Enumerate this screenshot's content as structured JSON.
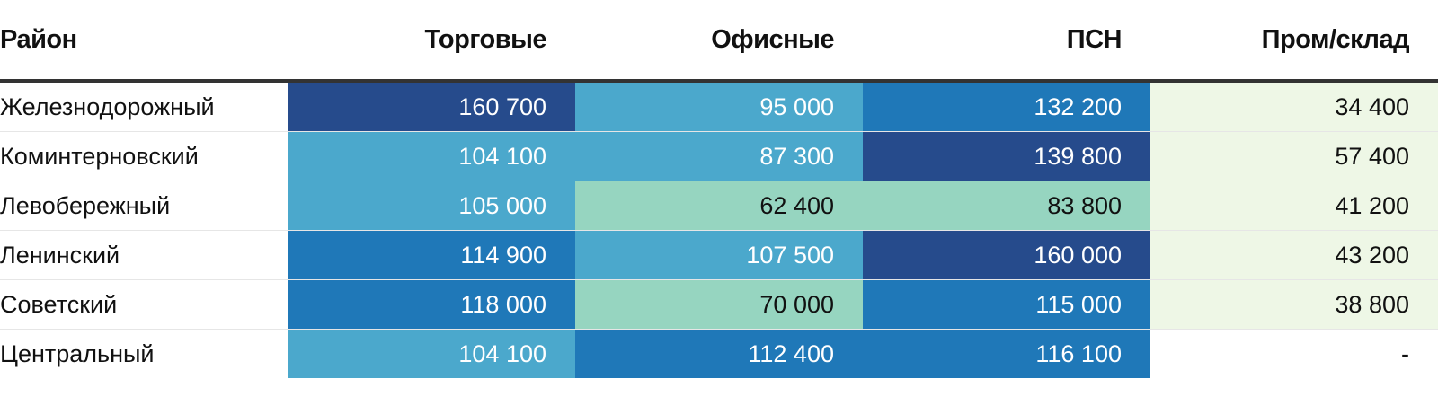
{
  "chart_data": {
    "type": "table",
    "columns": [
      "Район",
      "Торговые",
      "Офисные",
      "ПСН",
      "Пром/склад"
    ],
    "rows": [
      {
        "district": "Железнодорожный",
        "cells": [
          "160 700",
          "95 000",
          "132 200",
          "34 400"
        ],
        "values": [
          160700,
          95000,
          132200,
          34400
        ]
      },
      {
        "district": "Коминтерновский",
        "cells": [
          "104 100",
          "87 300",
          "139 800",
          "57 400"
        ],
        "values": [
          104100,
          87300,
          139800,
          57400
        ]
      },
      {
        "district": "Левобережный",
        "cells": [
          "105 000",
          "62 400",
          "83 800",
          "41 200"
        ],
        "values": [
          105000,
          62400,
          83800,
          41200
        ]
      },
      {
        "district": "Ленинский",
        "cells": [
          "114 900",
          "107 500",
          "160 000",
          "43 200"
        ],
        "values": [
          114900,
          107500,
          160000,
          43200
        ]
      },
      {
        "district": "Советский",
        "cells": [
          "118 000",
          "70 000",
          "115 000",
          "38 800"
        ],
        "values": [
          118000,
          70000,
          115000,
          38800
        ]
      },
      {
        "district": "Центральный",
        "cells": [
          "104 100",
          "112 400",
          "116 100",
          "-"
        ],
        "values": [
          104100,
          112400,
          116100,
          null
        ]
      }
    ],
    "color_scale": [
      {
        "min": 0,
        "max": 60000,
        "bg": "#eef7e6",
        "fg": "#111111"
      },
      {
        "min": 60000,
        "max": 85000,
        "bg": "#96d5c0",
        "fg": "#111111"
      },
      {
        "min": 85000,
        "max": 110000,
        "bg": "#4ba8cc",
        "fg": "#ffffff"
      },
      {
        "min": 110000,
        "max": 135000,
        "bg": "#1f78b8",
        "fg": "#ffffff"
      },
      {
        "min": 135000,
        "max": 1000000,
        "bg": "#264b8c",
        "fg": "#ffffff"
      }
    ]
  }
}
